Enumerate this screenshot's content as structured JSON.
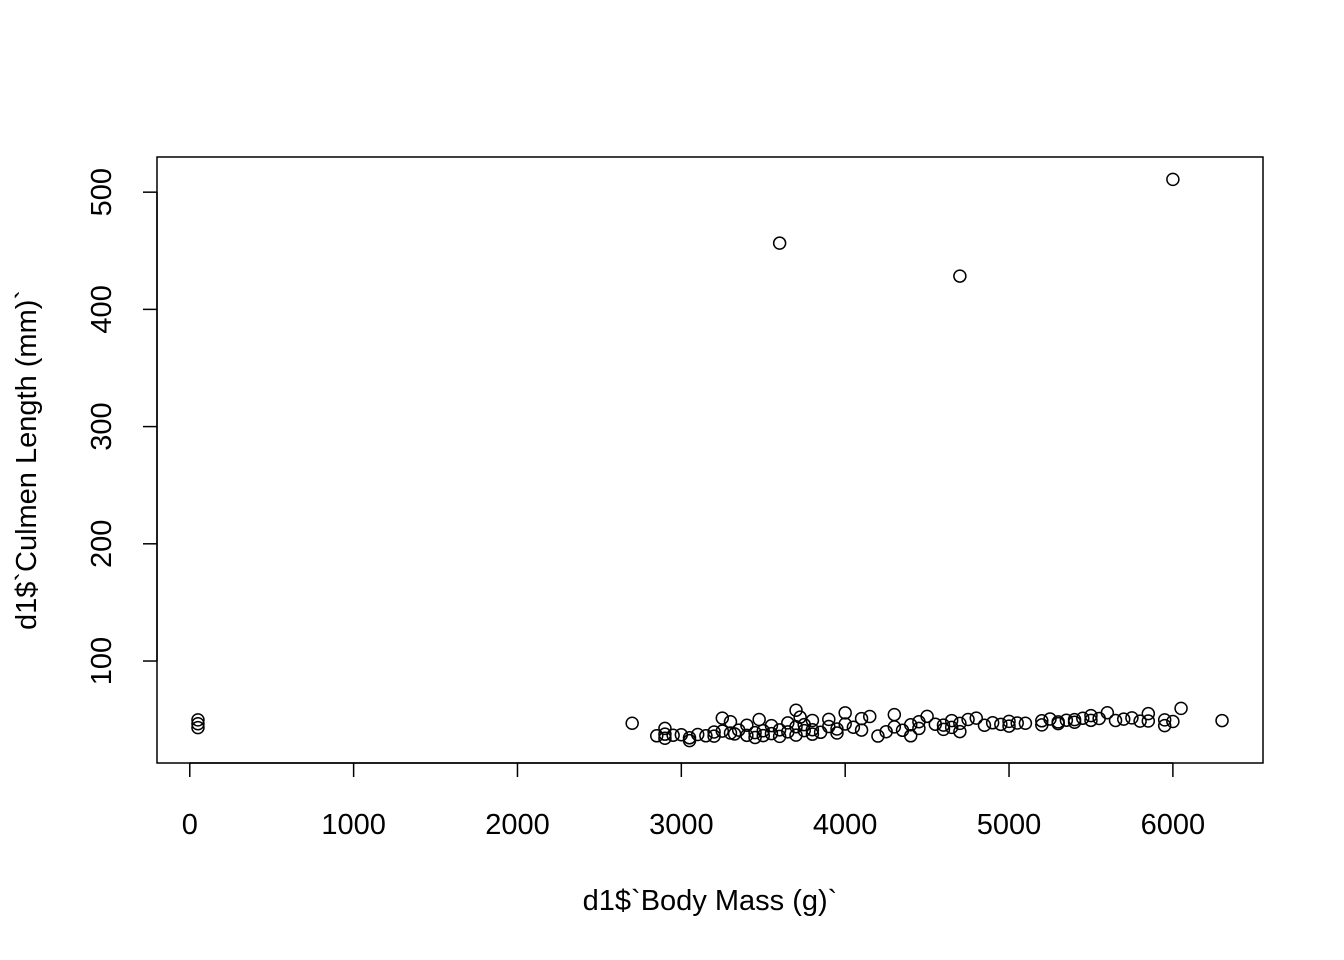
{
  "chart_data": {
    "type": "scatter",
    "x_label": "d1$`Body Mass (g)`",
    "y_label": "d1$`Culmen Length (mm)`",
    "xlim": [
      -200,
      6550
    ],
    "ylim": [
      13,
      530
    ],
    "xticks": [
      0,
      1000,
      2000,
      3000,
      4000,
      5000,
      6000
    ],
    "yticks": [
      100,
      200,
      300,
      400,
      500
    ],
    "color": "#000000",
    "x": [
      50,
      50,
      50,
      2700,
      2850,
      2900,
      2900,
      2900,
      2950,
      3000,
      3050,
      3050,
      3100,
      3150,
      3200,
      3200,
      3250,
      3250,
      3300,
      3300,
      3325,
      3350,
      3400,
      3400,
      3450,
      3450,
      3475,
      3500,
      3500,
      3550,
      3550,
      3600,
      3600,
      3650,
      3650,
      3700,
      3700,
      3700,
      3725,
      3750,
      3750,
      3800,
      3800,
      3800,
      3850,
      3900,
      3900,
      3950,
      3950,
      4000,
      4000,
      4050,
      4100,
      4100,
      4150,
      4200,
      4250,
      4300,
      4300,
      4350,
      4400,
      4400,
      4450,
      4450,
      4500,
      4550,
      4600,
      4600,
      4650,
      4650,
      4700,
      4700,
      4750,
      4800,
      4850,
      4900,
      4950,
      5000,
      5000,
      5050,
      5100,
      5200,
      5200,
      5250,
      5300,
      5300,
      5350,
      5400,
      5400,
      5450,
      5500,
      5500,
      5550,
      5600,
      5650,
      5700,
      5750,
      5800,
      5850,
      5850,
      5950,
      5950,
      6000,
      6050,
      6300,
      3600,
      4700,
      6000
    ],
    "y": [
      43.2,
      46.5,
      49.8,
      46.9,
      36.2,
      34.1,
      37.6,
      42.5,
      36.7,
      37.1,
      32.1,
      34.5,
      37.3,
      36.2,
      35.9,
      39.5,
      40.2,
      51.3,
      38.6,
      48.2,
      37.8,
      41.1,
      36.6,
      45.2,
      34.8,
      38.9,
      50.1,
      40.5,
      36.4,
      44.9,
      38.1,
      35.7,
      41.3,
      47.2,
      39.6,
      36.8,
      43.9,
      58.0,
      52.1,
      40.6,
      45.7,
      37.6,
      49.3,
      41.4,
      39.2,
      44.1,
      50.2,
      42.0,
      38.6,
      46.3,
      55.8,
      43.5,
      50.9,
      41.1,
      52.7,
      36.0,
      39.7,
      43.8,
      54.3,
      40.9,
      45.6,
      36.2,
      48.2,
      42.5,
      52.8,
      46.1,
      45.3,
      41.7,
      49.2,
      43.4,
      39.8,
      46.8,
      50.1,
      51.3,
      45.2,
      47.3,
      46.0,
      44.5,
      48.5,
      47.1,
      46.9,
      49.0,
      45.5,
      50.5,
      48.1,
      46.6,
      49.5,
      50.0,
      47.8,
      51.2,
      49.4,
      53.4,
      51.0,
      55.9,
      49.3,
      50.4,
      51.5,
      48.7,
      48.8,
      55.1,
      44.9,
      49.8,
      48.4,
      59.6,
      49.2,
      456.5,
      428.4,
      510.9
    ]
  }
}
